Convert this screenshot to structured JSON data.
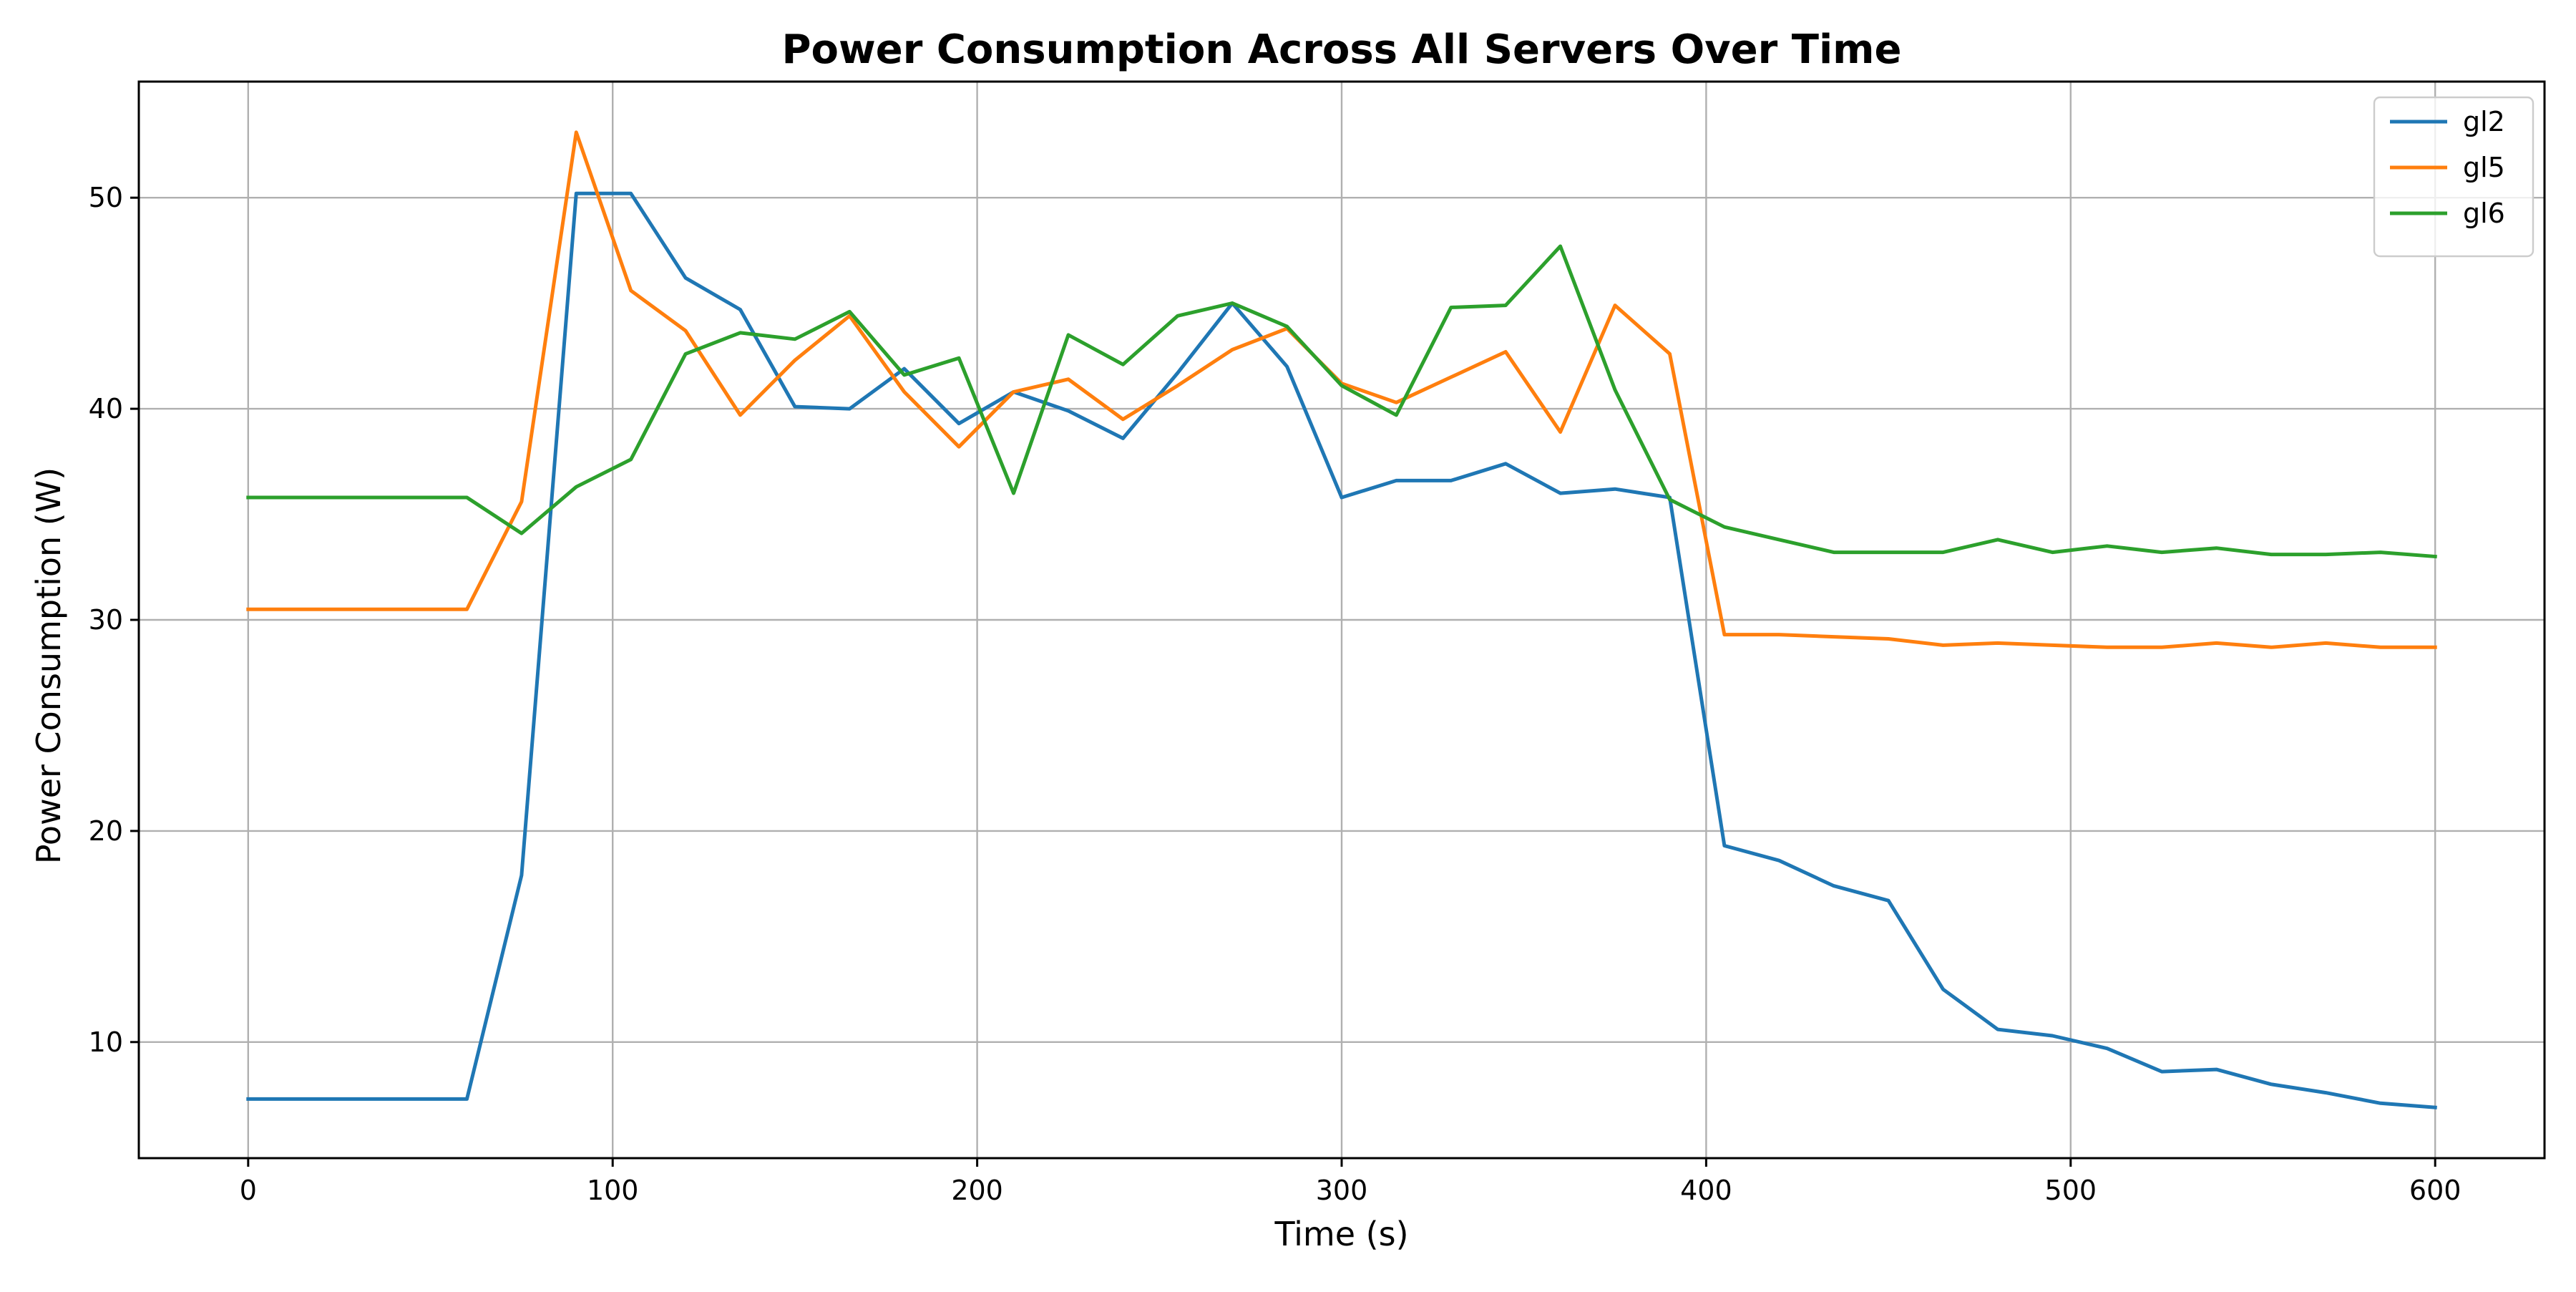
{
  "chart_data": {
    "type": "line",
    "title": "Power Consumption Across All Servers Over Time",
    "xlabel": "Time (s)",
    "ylabel": "Power Consumption (W)",
    "xlim": [
      -30,
      630
    ],
    "ylim": [
      4.5,
      55.5
    ],
    "xticks": [
      0,
      100,
      200,
      300,
      400,
      500,
      600
    ],
    "yticks": [
      10,
      20,
      30,
      40,
      50
    ],
    "grid": true,
    "legend_position": "top-right",
    "x": [
      0,
      15,
      30,
      45,
      60,
      75,
      90,
      105,
      120,
      135,
      150,
      165,
      180,
      195,
      210,
      225,
      240,
      255,
      270,
      285,
      300,
      315,
      330,
      345,
      360,
      375,
      390,
      405,
      420,
      435,
      450,
      465,
      480,
      495,
      510,
      525,
      540,
      555,
      570,
      585,
      600
    ],
    "series": [
      {
        "name": "gl2",
        "color": "#1f77b4",
        "values": [
          7.3,
          7.3,
          7.3,
          7.3,
          7.3,
          17.9,
          50.2,
          50.2,
          46.2,
          44.7,
          40.1,
          40.0,
          41.9,
          39.3,
          40.8,
          39.9,
          38.6,
          41.7,
          45.0,
          42.0,
          35.8,
          36.6,
          36.6,
          37.4,
          36.0,
          36.2,
          35.8,
          19.3,
          18.6,
          17.4,
          16.7,
          12.5,
          10.6,
          10.3,
          9.7,
          8.6,
          8.7,
          8.0,
          7.6,
          7.1,
          6.9
        ]
      },
      {
        "name": "gl5",
        "color": "#ff7f0e",
        "values": [
          30.5,
          30.5,
          30.5,
          30.5,
          30.5,
          35.6,
          53.1,
          45.6,
          43.7,
          39.7,
          42.3,
          44.4,
          40.8,
          38.2,
          40.8,
          41.4,
          39.5,
          41.1,
          42.8,
          43.8,
          41.2,
          40.3,
          41.5,
          42.7,
          38.9,
          44.9,
          42.6,
          29.3,
          29.3,
          29.2,
          29.1,
          28.8,
          28.9,
          28.8,
          28.7,
          28.7,
          28.9,
          28.7,
          28.9,
          28.7,
          28.7
        ]
      },
      {
        "name": "gl6",
        "color": "#2ca02c",
        "values": [
          35.8,
          35.8,
          35.8,
          35.8,
          35.8,
          34.1,
          36.3,
          37.6,
          42.6,
          43.6,
          43.3,
          44.6,
          41.6,
          42.4,
          36.0,
          43.5,
          42.1,
          44.4,
          45.0,
          43.9,
          41.1,
          39.7,
          44.8,
          44.9,
          47.7,
          40.9,
          35.7,
          34.4,
          33.8,
          33.2,
          33.2,
          33.2,
          33.8,
          33.2,
          33.5,
          33.2,
          33.4,
          33.1,
          33.1,
          33.2,
          33.0
        ]
      }
    ]
  }
}
